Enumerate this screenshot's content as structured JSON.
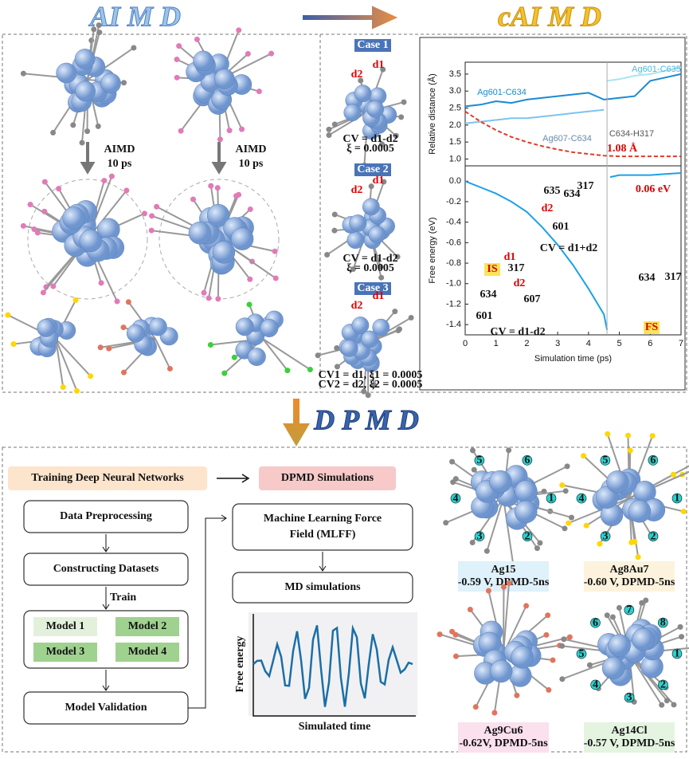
{
  "headers": {
    "aimd": "AI M D",
    "caimd": "cAI M D",
    "dpmd": "D P M D"
  },
  "aimd_panel": {
    "steps": [
      {
        "label": "AIMD",
        "duration": "10 ps"
      },
      {
        "label": "AIMD",
        "duration": "10 ps"
      }
    ]
  },
  "cases": [
    {
      "title": "Case 1",
      "d1": "d1",
      "d2": "d2",
      "cv": "CV = d1-d2",
      "xi": "ξ = 0.0005"
    },
    {
      "title": "Case 2",
      "d1": "d1",
      "d2": "d2",
      "cv": "CV = d1-d2",
      "xi": "ξ = 0.0005"
    },
    {
      "title": "Case 3",
      "d1": "d1",
      "d2": "d2",
      "cv": "CV1 = d1, ξ1 = 0.0005",
      "xi": "CV2 = d2, ξ2 = 0.0005"
    }
  ],
  "chart_data": [
    {
      "type": "line",
      "ylabel": "Relative distance (Å)",
      "xlim": [
        0,
        7
      ],
      "ylim": [
        0.8,
        3.85
      ],
      "yticks": [
        {
          "value": 1,
          "label": "1.0"
        },
        1.5,
        {
          "value": 2,
          "label": "2.0"
        },
        2.5,
        {
          "value": 3,
          "label": "3.0"
        },
        3.5
      ],
      "series": [
        {
          "name": "Ag601-C634",
          "color": "#1a8ad4",
          "x": [
            0,
            0.5,
            1,
            1.5,
            2,
            2.5,
            3,
            3.5,
            4,
            4.5,
            5,
            5.5,
            6,
            6.5,
            7
          ],
          "values": [
            2.55,
            2.6,
            2.7,
            2.65,
            2.75,
            2.8,
            2.85,
            2.9,
            2.95,
            2.75,
            2.8,
            2.85,
            3.3,
            3.4,
            3.5
          ]
        },
        {
          "name": "Ag607-C634",
          "color": "#7cc4ee",
          "x": [
            0,
            0.5,
            1,
            1.5,
            2,
            2.5,
            3,
            3.5,
            4,
            4.5
          ],
          "values": [
            2.05,
            2.1,
            2.15,
            2.2,
            2.2,
            2.25,
            2.3,
            2.35,
            2.4,
            2.45
          ]
        },
        {
          "name": "C634-H317",
          "color": "#e03a2a",
          "dashed": true,
          "x": [
            0,
            0.5,
            1,
            1.5,
            2,
            2.5,
            3,
            3.5,
            4,
            4.5,
            5,
            5.5,
            6,
            6.5,
            7
          ],
          "values": [
            2.4,
            2.1,
            1.85,
            1.65,
            1.5,
            1.38,
            1.28,
            1.2,
            1.15,
            1.1,
            1.08,
            1.08,
            1.08,
            1.08,
            1.08
          ]
        },
        {
          "name": "Ag601-C635",
          "color": "#a8e4f4",
          "x": [
            4.6,
            5,
            5.5,
            6,
            6.5,
            7
          ],
          "values": [
            3.3,
            3.35,
            3.45,
            3.5,
            3.6,
            3.7
          ]
        }
      ],
      "annotations": [
        "1.08 Å"
      ]
    },
    {
      "type": "line",
      "ylabel": "Free energy (eV)",
      "xlabel": "Simulation time (ps)",
      "xlim": [
        0,
        7
      ],
      "xticks": [
        0,
        1,
        2,
        3,
        4,
        5,
        6,
        7
      ],
      "ylim": [
        -1.5,
        0.15
      ],
      "yticks": [
        {
          "value": 0,
          "label": "0.0"
        },
        -0.2,
        -0.4,
        -0.6,
        -0.8,
        {
          "value": -1,
          "label": "-1.0"
        },
        -1.2,
        -1.4
      ],
      "series": [
        {
          "color": "#1da1e8",
          "x": [
            0,
            0.5,
            1,
            1.5,
            2,
            2.5,
            3,
            3.5,
            4,
            4.5,
            4.6,
            4.65,
            4.7,
            5,
            5.5,
            6,
            6.5,
            7
          ],
          "values": [
            0,
            -0.06,
            -0.12,
            -0.2,
            -0.3,
            -0.45,
            -0.62,
            -0.82,
            -1.05,
            -1.3,
            -1.45,
            null,
            0.04,
            0.06,
            0.06,
            0.06,
            0.07,
            0.08
          ]
        }
      ],
      "annotations": [
        "0.06 eV",
        "IS",
        "FS",
        "CV = d1+d2",
        "CV = d1-d2",
        "635",
        "634",
        "317",
        "601",
        "d2",
        "d1",
        "317",
        "d2",
        "634",
        "607",
        "601",
        "634",
        "317"
      ]
    }
  ],
  "workflow": {
    "training": "Training Deep Neural Networks",
    "dpmd": "DPMD Simulations",
    "steps": [
      "Data Preprocessing",
      "Constructing Datasets",
      "Model Validation"
    ],
    "train": "Train",
    "models": [
      "Model 1",
      "Model 2",
      "Model 3",
      "Model 4"
    ],
    "mlff": [
      "Machine Learning Force",
      "Field (MLFF)"
    ],
    "md": "MD simulations",
    "plot": {
      "ylabel": "Free energy",
      "xlabel": "Simulated time"
    }
  },
  "systems": [
    {
      "name": "Ag15",
      "condition": "-0.59 V, DPMD-5ns",
      "sites": [
        "1",
        "2",
        "3",
        "4",
        "5",
        "6"
      ]
    },
    {
      "name": "Ag8Au7",
      "condition": "-0.60 V, DPMD-5ns",
      "sites": [
        "1",
        "2",
        "3",
        "4",
        "5",
        "6"
      ]
    },
    {
      "name": "Ag9Cu6",
      "condition": "-0.62V, DPMD-5ns",
      "sites": []
    },
    {
      "name": "Ag14Cl",
      "condition": "-0.57 V, DPMD-5ns",
      "sites": [
        "1",
        "2",
        "3",
        "4",
        "5",
        "6",
        "7",
        "8"
      ]
    }
  ]
}
